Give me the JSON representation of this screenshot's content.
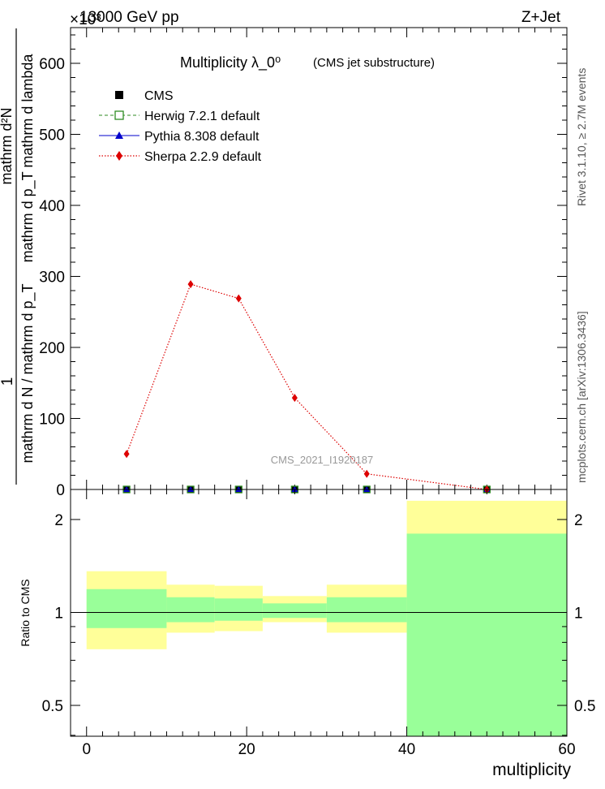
{
  "header": {
    "left": "13000 GeV pp",
    "right": "Z+Jet",
    "multiplier": "×10³"
  },
  "side_labels": {
    "rivet": "Rivet 3.1.10, ≥ 2.7M events",
    "mcplots": "mcplots.cern.ch [arXiv:1306.3436]"
  },
  "colors": {
    "cms": "#000000",
    "herwig": "#2e8b22",
    "pythia": "#0000cc",
    "sherpa": "#dd0000",
    "band_outer": "#ffff99",
    "band_inner": "#99ff99"
  },
  "chart_data": [
    {
      "type": "line",
      "title": "Multiplicity  λ_0⁰",
      "title_note": "(CMS jet substructure)",
      "watermark": "CMS_2021_I1920187",
      "ylabel_top": "mathrm d²N",
      "ylabel_mid": "mathrm d p_T mathrm d lambda",
      "ylabel_one": "1",
      "ylabel_bottom": "mathrm d N / mathrm d p_T",
      "y_multiplier": "×10³",
      "xlim": [
        -2,
        60
      ],
      "ylim": [
        0,
        650
      ],
      "yticks": [
        0,
        100,
        200,
        300,
        400,
        500,
        600
      ],
      "ytick_labels": [
        "0",
        "100",
        "200",
        "300",
        "400",
        "500",
        "600"
      ],
      "legend_position": "top-left",
      "legend": [
        "CMS",
        "Herwig 7.2.1 default",
        "Pythia 8.308 default",
        "Sherpa 2.2.9 default"
      ],
      "bins": [
        [
          0,
          10
        ],
        [
          10,
          16
        ],
        [
          16,
          22
        ],
        [
          22,
          30
        ],
        [
          30,
          40
        ],
        [
          40,
          60
        ]
      ],
      "x": [
        5,
        13,
        19,
        26,
        35,
        50
      ],
      "series": [
        {
          "name": "CMS",
          "marker": "square-filled",
          "values": [
            0,
            0,
            0,
            0,
            0,
            0
          ]
        },
        {
          "name": "Herwig 7.2.1 default",
          "marker": "square-open",
          "line": "dashed",
          "values": [
            0,
            0,
            0,
            0,
            0,
            0
          ]
        },
        {
          "name": "Pythia 8.308 default",
          "marker": "triangle",
          "line": "solid",
          "values": [
            0,
            0,
            0,
            0,
            0,
            0
          ]
        },
        {
          "name": "Sherpa 2.2.9 default",
          "marker": "diamond",
          "line": "dotted",
          "values": [
            50,
            289,
            269,
            129,
            22,
            0
          ]
        }
      ]
    },
    {
      "type": "area",
      "ylabel": "Ratio to CMS",
      "xlabel": "multiplicity",
      "xlim": [
        -2,
        60
      ],
      "ylim": [
        0.36,
        2.3
      ],
      "yticks": [
        0.5,
        1,
        2
      ],
      "ytick_labels": [
        "0.5",
        "1",
        "2"
      ],
      "xticks": [
        0,
        20,
        40,
        60
      ],
      "xtick_labels": [
        "0",
        "20",
        "40",
        "60"
      ],
      "reference_line": 1,
      "bands": [
        {
          "x0": 0,
          "x1": 10,
          "outer": [
            0.76,
            1.36
          ],
          "inner": [
            0.89,
            1.19
          ]
        },
        {
          "x0": 10,
          "x1": 16,
          "outer": [
            0.86,
            1.23
          ],
          "inner": [
            0.93,
            1.12
          ]
        },
        {
          "x0": 16,
          "x1": 22,
          "outer": [
            0.87,
            1.22
          ],
          "inner": [
            0.94,
            1.11
          ]
        },
        {
          "x0": 22,
          "x1": 30,
          "outer": [
            0.93,
            1.13
          ],
          "inner": [
            0.96,
            1.07
          ]
        },
        {
          "x0": 30,
          "x1": 40,
          "outer": [
            0.86,
            1.23
          ],
          "inner": [
            0.93,
            1.12
          ]
        },
        {
          "x0": 40,
          "x1": 60,
          "outer": [
            0.36,
            2.3
          ],
          "inner": [
            0.36,
            1.8
          ]
        }
      ]
    }
  ]
}
